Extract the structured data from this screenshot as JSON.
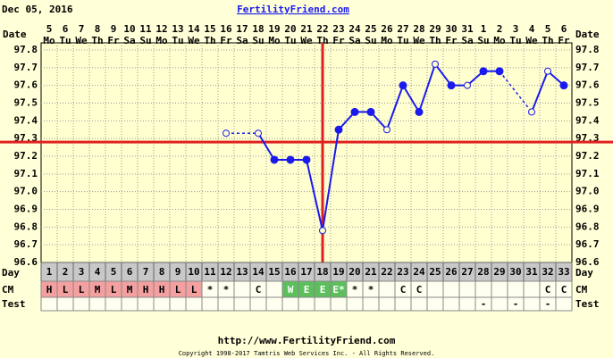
{
  "chart_data": {
    "type": "line",
    "date_label": "Dec 05, 2016",
    "title": "FertilityFriend.com",
    "row_labels": {
      "date": "Date",
      "day": "Day",
      "cm": "CM",
      "test": "Test"
    },
    "dates": [
      5,
      6,
      7,
      8,
      9,
      10,
      11,
      12,
      13,
      14,
      15,
      16,
      17,
      18,
      19,
      20,
      21,
      22,
      23,
      24,
      25,
      26,
      27,
      28,
      29,
      30,
      31,
      1,
      2,
      3,
      4,
      5,
      6
    ],
    "weekdays": [
      "Mo",
      "Tu",
      "We",
      "Th",
      "Fr",
      "Sa",
      "Su",
      "Mo",
      "Tu",
      "We",
      "Th",
      "Fr",
      "Sa",
      "Su",
      "Mo",
      "Tu",
      "We",
      "Th",
      "Fr",
      "Sa",
      "Su",
      "Mo",
      "Tu",
      "We",
      "Th",
      "Fr",
      "Sa",
      "Su",
      "Mo",
      "Tu",
      "We",
      "Th",
      "Fr"
    ],
    "categories": [
      1,
      2,
      3,
      4,
      5,
      6,
      7,
      8,
      9,
      10,
      11,
      12,
      13,
      14,
      15,
      16,
      17,
      18,
      19,
      20,
      21,
      22,
      23,
      24,
      25,
      26,
      27,
      28,
      29,
      30,
      31,
      32,
      33
    ],
    "series": [
      {
        "color": "#1a1aee",
        "values": [
          null,
          null,
          null,
          null,
          null,
          null,
          null,
          null,
          null,
          null,
          null,
          97.33,
          null,
          97.33,
          97.18,
          97.18,
          97.18,
          96.78,
          97.35,
          97.45,
          97.45,
          97.35,
          97.6,
          97.45,
          97.72,
          97.6,
          97.6,
          97.68,
          97.68,
          null,
          97.45,
          97.68,
          97.6
        ],
        "markers": [
          null,
          null,
          null,
          null,
          null,
          null,
          null,
          null,
          null,
          null,
          null,
          "open",
          null,
          "open",
          "filled",
          "filled",
          "filled",
          "open",
          "filled",
          "filled",
          "filled",
          "open",
          "filled",
          "filled",
          "open",
          "filled",
          "open",
          "filled",
          "filled",
          null,
          "open",
          "open",
          "filled"
        ]
      }
    ],
    "coverline": 97.28,
    "ovulation_day": 18,
    "line_color": "#e02020",
    "ylim": [
      96.6,
      97.8
    ],
    "yticks": [
      96.6,
      96.7,
      96.8,
      96.9,
      {
        "value": 97,
        "label": "97.0"
      },
      97.1,
      97.2,
      97.3,
      97.4,
      97.5,
      97.6,
      97.7,
      97.8
    ],
    "grid": true,
    "cm": [
      "H",
      "L",
      "L",
      "M",
      "L",
      "M",
      "H",
      "H",
      "L",
      "L",
      "*",
      "*",
      null,
      "C",
      null,
      "W",
      "E",
      "E",
      "E*",
      "*",
      "*",
      null,
      "C",
      "C",
      null,
      null,
      null,
      null,
      null,
      null,
      null,
      "C",
      "C"
    ],
    "cm_fill": [
      "#f4a0a0",
      "#f4a0a0",
      "#f4a0a0",
      "#f4a0a0",
      "#f4a0a0",
      "#f4a0a0",
      "#f4a0a0",
      "#f4a0a0",
      "#f4a0a0",
      "#f4a0a0",
      null,
      null,
      null,
      null,
      null,
      "#5cbf5c",
      "#5cbf5c",
      "#5cbf5c",
      "#5cbf5c",
      null,
      null,
      null,
      null,
      null,
      null,
      null,
      null,
      null,
      null,
      null,
      null,
      null,
      null
    ],
    "test": [
      null,
      null,
      null,
      null,
      null,
      null,
      null,
      null,
      null,
      null,
      null,
      null,
      null,
      null,
      null,
      null,
      null,
      null,
      null,
      null,
      null,
      null,
      null,
      null,
      null,
      null,
      null,
      "-",
      null,
      "-",
      null,
      "-",
      null
    ],
    "footer_url": "http://www.FertilityFriend.com",
    "copyright": "Copyright 1998-2017 Tamtris Web Services Inc. - All Rights Reserved."
  }
}
